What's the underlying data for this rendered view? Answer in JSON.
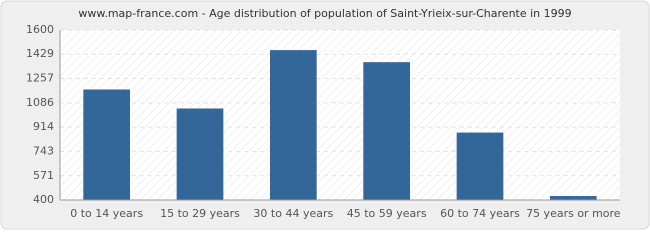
{
  "chart_data": {
    "type": "bar",
    "title": "www.map-france.com - Age distribution of population of Saint-Yrieix-sur-Charente in 1999",
    "categories": [
      "0 to 14 years",
      "15 to 29 years",
      "30 to 44 years",
      "45 to 59 years",
      "60 to 74 years",
      "75 years or more"
    ],
    "values": [
      1180,
      1046,
      1458,
      1373,
      876,
      428
    ],
    "color": "#336699",
    "ylim": [
      400,
      1600
    ],
    "yticks": [
      400,
      571,
      743,
      914,
      1086,
      1257,
      1429,
      1600
    ],
    "grid": true
  }
}
